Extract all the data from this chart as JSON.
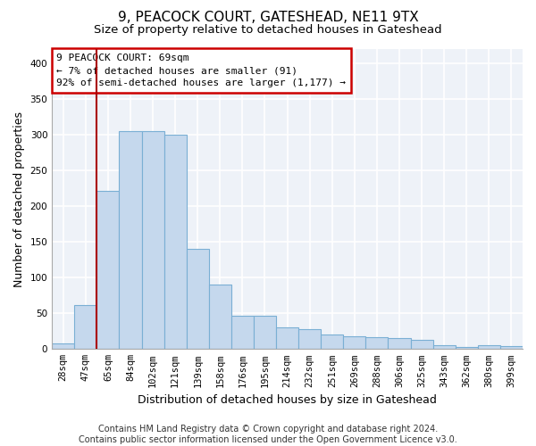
{
  "title1": "9, PEACOCK COURT, GATESHEAD, NE11 9TX",
  "title2": "Size of property relative to detached houses in Gateshead",
  "xlabel": "Distribution of detached houses by size in Gateshead",
  "ylabel": "Number of detached properties",
  "categories": [
    "28sqm",
    "47sqm",
    "65sqm",
    "84sqm",
    "102sqm",
    "121sqm",
    "139sqm",
    "158sqm",
    "176sqm",
    "195sqm",
    "214sqm",
    "232sqm",
    "251sqm",
    "269sqm",
    "288sqm",
    "306sqm",
    "325sqm",
    "343sqm",
    "362sqm",
    "380sqm",
    "399sqm"
  ],
  "values": [
    8,
    62,
    222,
    305,
    305,
    300,
    140,
    90,
    47,
    47,
    30,
    28,
    20,
    18,
    17,
    15,
    13,
    5,
    3,
    5,
    4
  ],
  "bar_color": "#c5d8ed",
  "bar_edge_color": "#7aafd4",
  "vline_x": 2.5,
  "vline_color": "#aa0000",
  "annotation_lines": [
    "9 PEACOCK COURT: 69sqm",
    "← 7% of detached houses are smaller (91)",
    "92% of semi-detached houses are larger (1,177) →"
  ],
  "annotation_box_color": "#ffffff",
  "annotation_box_edge": "#cc0000",
  "footer1": "Contains HM Land Registry data © Crown copyright and database right 2024.",
  "footer2": "Contains public sector information licensed under the Open Government Licence v3.0.",
  "ylim": [
    0,
    420
  ],
  "yticks": [
    0,
    50,
    100,
    150,
    200,
    250,
    300,
    350,
    400
  ],
  "background_color": "#eef2f8",
  "grid_color": "#ffffff",
  "title1_fontsize": 11,
  "title2_fontsize": 9.5,
  "xlabel_fontsize": 9,
  "ylabel_fontsize": 9,
  "tick_fontsize": 7.5,
  "annotation_fontsize": 8,
  "footer_fontsize": 7
}
